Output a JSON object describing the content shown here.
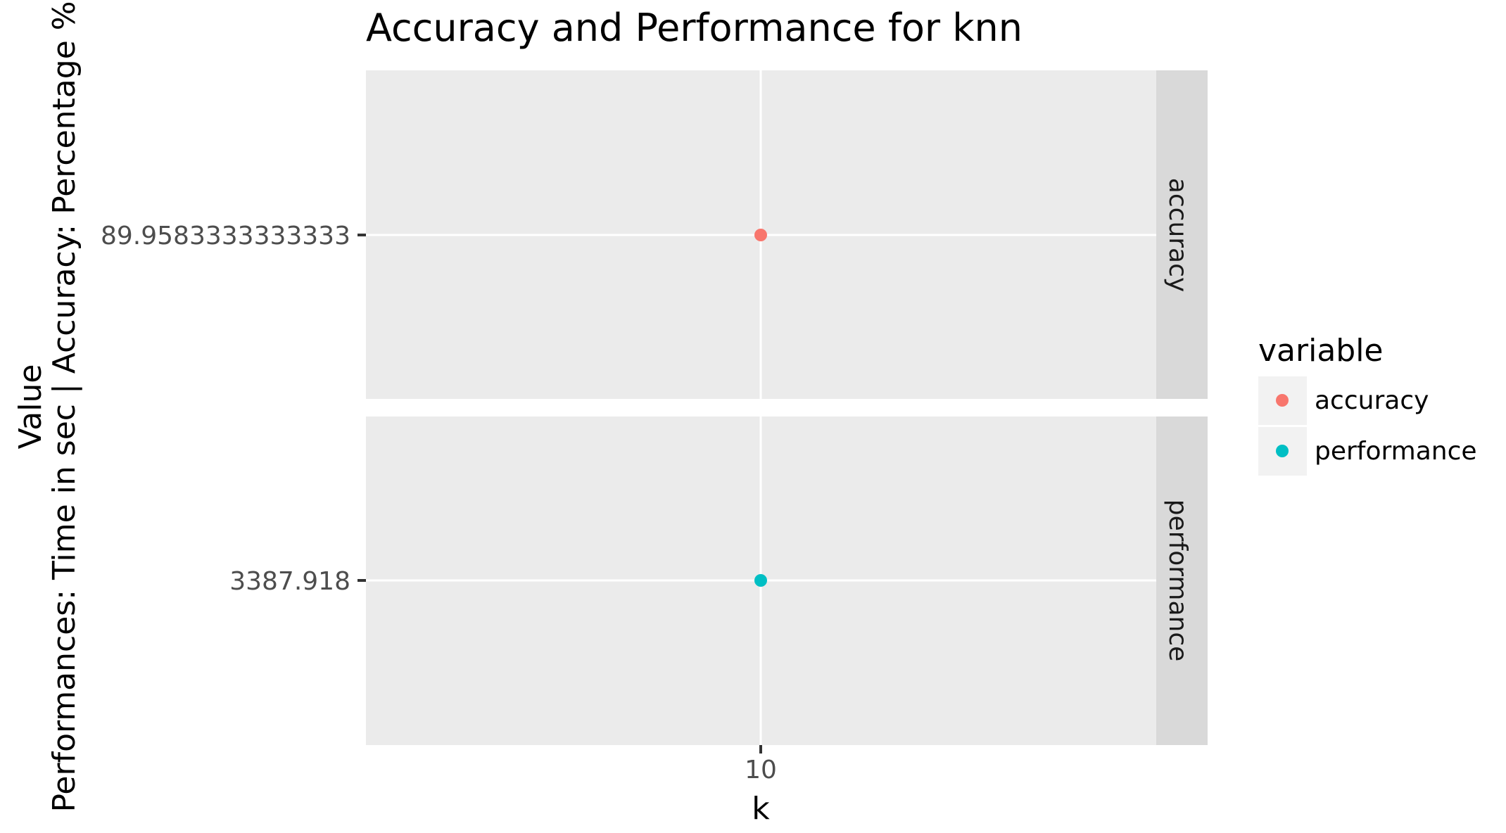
{
  "chart_data": {
    "type": "scatter",
    "title": "Accuracy and Performance for knn",
    "xlabel": "k",
    "ylabel_line1": "Value",
    "ylabel_line2": "Performances: Time in sec | Accuracy: Percentage %",
    "x_ticks": [
      "10"
    ],
    "facets": [
      {
        "strip_label": "accuracy",
        "y_tick_label": "89.9583333333333",
        "points": [
          {
            "x": 10,
            "y": 89.9583333333333,
            "series": "accuracy"
          }
        ]
      },
      {
        "strip_label": "performance",
        "y_tick_label": "3387.918",
        "points": [
          {
            "x": 10,
            "y": 3387.918,
            "series": "performance"
          }
        ]
      }
    ],
    "legend": {
      "title": "variable",
      "position": "right",
      "entries": [
        {
          "label": "accuracy",
          "color": "#F8766D"
        },
        {
          "label": "performance",
          "color": "#00BFC4"
        }
      ]
    },
    "colors": {
      "panel_bg": "#EBEBEB",
      "strip_bg": "#D9D9D9",
      "grid": "#FFFFFF",
      "text": "#000000",
      "tick_text": "#4D4D4D"
    }
  }
}
